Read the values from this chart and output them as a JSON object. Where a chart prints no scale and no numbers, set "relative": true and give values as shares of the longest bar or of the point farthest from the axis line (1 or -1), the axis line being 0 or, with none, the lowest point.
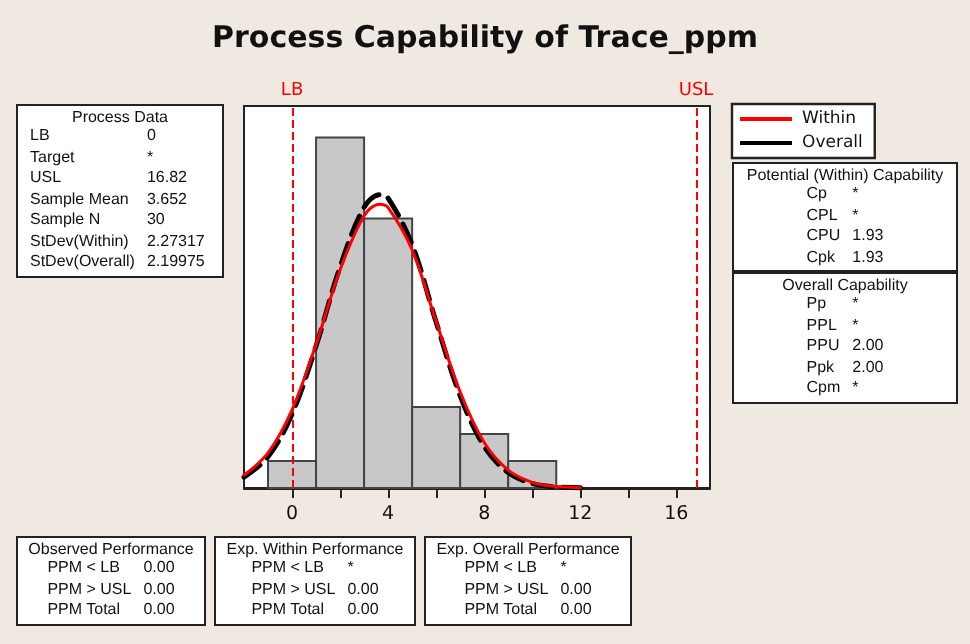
{
  "chart_data": [
    {
      "type": "histogram",
      "title": "Process Capability of Trace_ppm",
      "relative": true,
      "bins": [
        -1,
        1,
        3,
        5,
        7,
        9,
        11
      ],
      "values": [
        0.077,
        1,
        0.769,
        0.231,
        0.154,
        0.077
      ],
      "color": "#c8c8c8",
      "series": [
        {
          "name": "Within",
          "type": "line",
          "color": "#ff0000",
          "line_style": "solid",
          "x": [
            -2,
            -1,
            0,
            1,
            2,
            3,
            3.652,
            4,
            5,
            6,
            7,
            8,
            9,
            10,
            11,
            12
          ],
          "values": [
            0.037,
            0.1,
            0.223,
            0.41,
            0.622,
            0.777,
            0.81,
            0.8,
            0.679,
            0.475,
            0.274,
            0.13,
            0.051,
            0.016,
            0.004,
            0.001
          ]
        },
        {
          "name": "Overall",
          "type": "line",
          "color": "#000000",
          "line_style": "dashed",
          "x": [
            -2,
            -1,
            0,
            1,
            2,
            3,
            3.652,
            4,
            5,
            6,
            7,
            8,
            9,
            10,
            11,
            12
          ],
          "values": [
            0.031,
            0.089,
            0.211,
            0.405,
            0.631,
            0.801,
            0.837,
            0.827,
            0.694,
            0.473,
            0.263,
            0.119,
            0.044,
            0.013,
            0.003,
            0.001
          ]
        }
      ],
      "xlim": [
        -2,
        17.4
      ],
      "xticks": [
        0,
        {
          "value": 2,
          "label": null
        },
        4,
        {
          "value": 6,
          "label": null
        },
        8,
        {
          "value": 10,
          "label": null
        },
        12,
        {
          "value": 14,
          "label": null
        },
        16
      ],
      "ref_lines": [
        {
          "axis": "x",
          "value": 0,
          "label": "LB",
          "color": "#ff0000",
          "line_style": "dashed"
        },
        {
          "axis": "x",
          "value": 16.82,
          "label": "USL",
          "color": "#ff0000",
          "line_style": "dashed"
        }
      ],
      "grid": false,
      "legend": "right",
      "marker": "none",
      "tick_labels": "x"
    },
    {
      "type": "other",
      "title": "Process Data",
      "annotations": [
        "LB",
        "0",
        "Target",
        "*",
        "USL",
        "16.82",
        "Sample Mean",
        "3.652",
        "Sample N",
        "30",
        "StDev(Within)",
        "2.27317",
        "StDev(Overall)",
        "2.19975"
      ]
    },
    {
      "type": "other",
      "title": "Potential (Within) Capability",
      "annotations": [
        "Cp",
        "*",
        "CPL",
        "*",
        "CPU",
        "1.93",
        "Cpk",
        "1.93"
      ]
    },
    {
      "type": "other",
      "title": "Overall Capability",
      "annotations": [
        "Pp",
        "*",
        "PPL",
        "*",
        "PPU",
        "2.00",
        "Ppk",
        "2.00",
        "Cpm",
        "*"
      ]
    },
    {
      "type": "other",
      "title": "Observed Performance",
      "annotations": [
        "PPM < LB",
        "0.00",
        "PPM > USL",
        "0.00",
        "PPM Total",
        "0.00"
      ]
    },
    {
      "type": "other",
      "title": "Exp. Within Performance",
      "annotations": [
        "PPM < LB",
        "*",
        "PPM > USL",
        "0.00",
        "PPM Total",
        "0.00"
      ]
    },
    {
      "type": "other",
      "title": "Exp. Overall Performance",
      "annotations": [
        "PPM < LB",
        "*",
        "PPM > USL",
        "0.00",
        "PPM Total",
        "0.00"
      ]
    }
  ]
}
